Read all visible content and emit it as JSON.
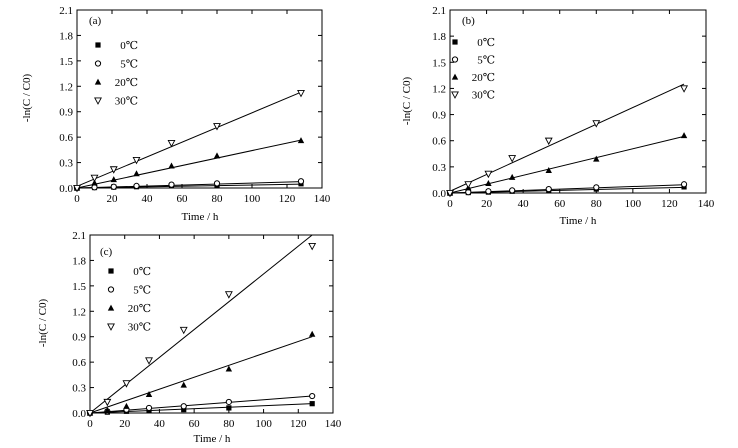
{
  "chart_data": [
    {
      "type": "scatter",
      "panel_label": "(a)",
      "xlabel": "Time / h",
      "ylabel": "-ln(C / C0)",
      "xlim": [
        0,
        140
      ],
      "ylim": [
        0,
        2.1
      ],
      "xticks": [
        0,
        20,
        40,
        60,
        80,
        100,
        120,
        140
      ],
      "yticks": [
        0.0,
        0.3,
        0.6,
        0.9,
        1.2,
        1.5,
        1.8,
        2.1
      ],
      "legend_position": "top-left",
      "series": [
        {
          "name": "0℃",
          "marker": "square",
          "x": [
            0,
            10,
            21,
            34,
            54,
            80,
            128
          ],
          "values": [
            0.0,
            0.005,
            0.01,
            0.015,
            0.025,
            0.035,
            0.05
          ],
          "fit": [
            0.0,
            0.045
          ]
        },
        {
          "name": "5℃",
          "marker": "circle",
          "x": [
            0,
            10,
            21,
            34,
            54,
            80,
            128
          ],
          "values": [
            0.0,
            0.008,
            0.015,
            0.025,
            0.04,
            0.055,
            0.08
          ],
          "fit": [
            0.0,
            0.075
          ]
        },
        {
          "name": "20℃",
          "marker": "triangle-up",
          "x": [
            0,
            10,
            21,
            34,
            54,
            80,
            128
          ],
          "values": [
            0.0,
            0.06,
            0.1,
            0.17,
            0.26,
            0.38,
            0.56
          ],
          "fit": [
            0.0,
            0.565
          ]
        },
        {
          "name": "30℃",
          "marker": "triangle-down",
          "x": [
            0,
            10,
            21,
            34,
            54,
            80,
            128
          ],
          "values": [
            0.0,
            0.12,
            0.22,
            0.33,
            0.53,
            0.73,
            1.12
          ],
          "fit": [
            0.02,
            1.13
          ]
        }
      ]
    },
    {
      "type": "scatter",
      "panel_label": "(b)",
      "xlabel": "Time / h",
      "ylabel": "-ln(C / C0)",
      "xlim": [
        0,
        140
      ],
      "ylim": [
        0,
        2.1
      ],
      "xticks": [
        0,
        20,
        40,
        60,
        80,
        100,
        120,
        140
      ],
      "yticks": [
        0.0,
        0.3,
        0.6,
        0.9,
        1.2,
        1.5,
        1.8,
        2.1
      ],
      "legend_position": "top-left",
      "series": [
        {
          "name": "0℃",
          "marker": "square",
          "x": [
            0,
            10,
            21,
            34,
            54,
            80,
            128
          ],
          "values": [
            0.0,
            0.005,
            0.01,
            0.02,
            0.03,
            0.045,
            0.07
          ],
          "fit": [
            0.0,
            0.065
          ]
        },
        {
          "name": "5℃",
          "marker": "circle",
          "x": [
            0,
            10,
            21,
            34,
            54,
            80,
            128
          ],
          "values": [
            0.0,
            0.01,
            0.02,
            0.03,
            0.045,
            0.065,
            0.1
          ],
          "fit": [
            0.0,
            0.095
          ]
        },
        {
          "name": "20℃",
          "marker": "triangle-up",
          "x": [
            0,
            10,
            21,
            34,
            54,
            80,
            128
          ],
          "values": [
            0.0,
            0.06,
            0.11,
            0.18,
            0.26,
            0.39,
            0.66
          ],
          "fit": [
            0.0,
            0.65
          ]
        },
        {
          "name": "30℃",
          "marker": "triangle-down",
          "x": [
            0,
            10,
            21,
            34,
            54,
            80,
            128
          ],
          "values": [
            0.0,
            0.1,
            0.22,
            0.4,
            0.6,
            0.8,
            1.2
          ],
          "fit": [
            0.02,
            1.25
          ]
        }
      ]
    },
    {
      "type": "scatter",
      "panel_label": "(c)",
      "xlabel": "Time / h",
      "ylabel": "-ln(C / C0)",
      "xlim": [
        0,
        140
      ],
      "ylim": [
        0,
        2.1
      ],
      "xticks": [
        0,
        20,
        40,
        60,
        80,
        100,
        120,
        140
      ],
      "yticks": [
        0.0,
        0.3,
        0.6,
        0.9,
        1.2,
        1.5,
        1.8,
        2.1
      ],
      "legend_position": "top-left",
      "series": [
        {
          "name": "0℃",
          "marker": "square",
          "x": [
            0,
            10,
            21,
            34,
            54,
            80,
            128
          ],
          "values": [
            0.0,
            0.01,
            0.02,
            0.03,
            0.04,
            0.06,
            0.11
          ],
          "fit": [
            0.0,
            0.11
          ]
        },
        {
          "name": "5℃",
          "marker": "circle",
          "x": [
            0,
            10,
            21,
            34,
            54,
            80,
            128
          ],
          "values": [
            0.0,
            0.02,
            0.04,
            0.06,
            0.08,
            0.13,
            0.2
          ],
          "fit": [
            0.0,
            0.2
          ]
        },
        {
          "name": "20℃",
          "marker": "triangle-up",
          "x": [
            0,
            10,
            21,
            34,
            54,
            80,
            128
          ],
          "values": [
            0.0,
            0.03,
            0.08,
            0.22,
            0.33,
            0.52,
            0.93
          ],
          "fit": [
            0.0,
            0.9
          ]
        },
        {
          "name": "30℃",
          "marker": "triangle-down",
          "x": [
            0,
            10,
            21,
            34,
            54,
            80,
            128
          ],
          "values": [
            0.0,
            0.13,
            0.35,
            0.62,
            0.98,
            1.4,
            1.97
          ],
          "fit": [
            0.0,
            2.1
          ]
        }
      ]
    }
  ]
}
